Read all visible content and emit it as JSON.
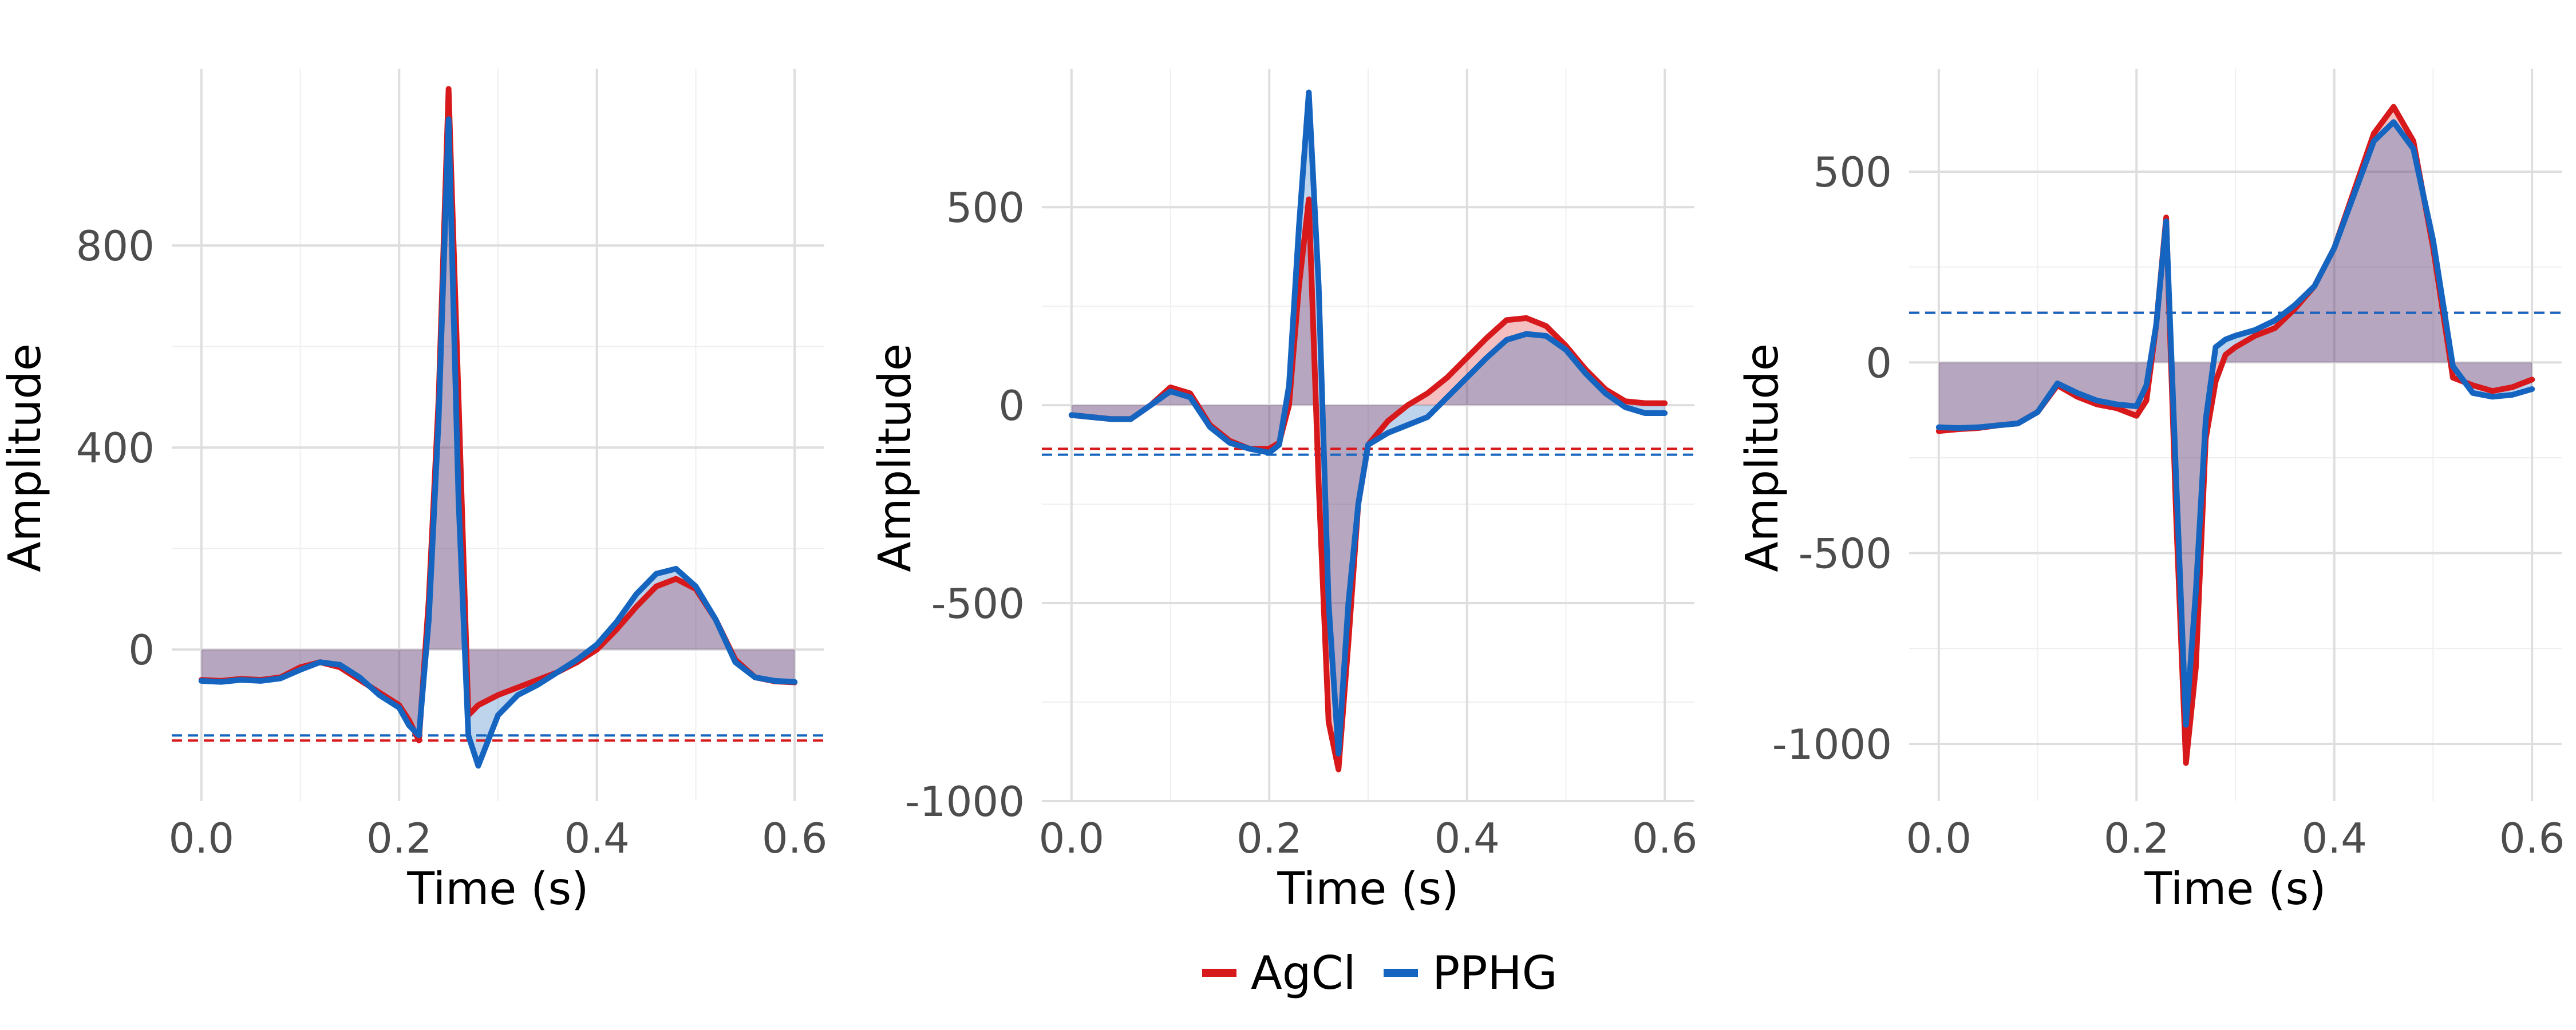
{
  "chart_data": [
    {
      "type": "line",
      "panel": 1,
      "xlabel": "Time (s)",
      "ylabel": "Amplitude",
      "xlim": [
        -0.03,
        0.63
      ],
      "ylim": [
        -300,
        1150
      ],
      "x_ticks": [
        0.0,
        0.2,
        0.4,
        0.6
      ],
      "x_tick_labels": [
        "0.0",
        "0.2",
        "0.4",
        "0.6"
      ],
      "y_ticks": [
        0,
        400,
        800
      ],
      "y_tick_labels": [
        "0",
        "400",
        "800"
      ],
      "grid": true,
      "x": [
        0.0,
        0.02,
        0.04,
        0.06,
        0.08,
        0.1,
        0.12,
        0.14,
        0.16,
        0.18,
        0.2,
        0.21,
        0.22,
        0.23,
        0.24,
        0.25,
        0.26,
        0.27,
        0.28,
        0.3,
        0.32,
        0.34,
        0.36,
        0.38,
        0.4,
        0.42,
        0.44,
        0.46,
        0.48,
        0.5,
        0.52,
        0.54,
        0.56,
        0.58,
        0.6
      ],
      "series": [
        {
          "name": "AgCl",
          "color": "#d7191c",
          "mean": -180,
          "values": [
            -60,
            -62,
            -58,
            -60,
            -55,
            -35,
            -25,
            -35,
            -60,
            -85,
            -110,
            -140,
            -180,
            100,
            500,
            1110,
            500,
            -130,
            -110,
            -90,
            -75,
            -60,
            -45,
            -25,
            0,
            40,
            85,
            125,
            140,
            120,
            60,
            -20,
            -55,
            -63,
            -65
          ]
        },
        {
          "name": "PPHG",
          "color": "#1565c0",
          "mean": -170,
          "values": [
            -62,
            -64,
            -60,
            -62,
            -57,
            -40,
            -25,
            -30,
            -55,
            -90,
            -115,
            -150,
            -170,
            60,
            460,
            1050,
            300,
            -170,
            -230,
            -130,
            -90,
            -70,
            -45,
            -20,
            10,
            55,
            110,
            150,
            160,
            125,
            60,
            -25,
            -55,
            -62,
            -64
          ]
        }
      ]
    },
    {
      "type": "line",
      "panel": 2,
      "xlabel": "Time (s)",
      "ylabel": "Amplitude",
      "xlim": [
        -0.03,
        0.63
      ],
      "ylim": [
        -1000,
        850
      ],
      "x_ticks": [
        0.0,
        0.2,
        0.4,
        0.6
      ],
      "x_tick_labels": [
        "0.0",
        "0.2",
        "0.4",
        "0.6"
      ],
      "y_ticks": [
        -1000,
        -500,
        0,
        500
      ],
      "y_tick_labels": [
        "-1000",
        "-500",
        "0",
        "500"
      ],
      "grid": true,
      "x": [
        0.0,
        0.02,
        0.04,
        0.06,
        0.08,
        0.1,
        0.12,
        0.14,
        0.16,
        0.18,
        0.2,
        0.21,
        0.22,
        0.23,
        0.24,
        0.25,
        0.26,
        0.27,
        0.28,
        0.29,
        0.3,
        0.32,
        0.34,
        0.36,
        0.38,
        0.4,
        0.42,
        0.44,
        0.46,
        0.48,
        0.5,
        0.52,
        0.54,
        0.56,
        0.58,
        0.6
      ],
      "series": [
        {
          "name": "AgCl",
          "color": "#d7191c",
          "mean": -110,
          "values": [
            -25,
            -30,
            -35,
            -35,
            0,
            45,
            30,
            -50,
            -90,
            -110,
            -110,
            -95,
            0,
            300,
            520,
            -200,
            -800,
            -920,
            -600,
            -250,
            -100,
            -40,
            0,
            30,
            70,
            120,
            170,
            215,
            220,
            200,
            150,
            90,
            40,
            10,
            5,
            5
          ]
        },
        {
          "name": "PPHG",
          "color": "#1565c0",
          "mean": -125,
          "values": [
            -25,
            -30,
            -35,
            -35,
            0,
            35,
            20,
            -55,
            -95,
            -110,
            -120,
            -100,
            50,
            450,
            790,
            300,
            -500,
            -880,
            -500,
            -250,
            -100,
            -70,
            -50,
            -30,
            20,
            70,
            120,
            165,
            180,
            175,
            140,
            80,
            30,
            -5,
            -20,
            -20
          ]
        }
      ]
    },
    {
      "type": "line",
      "panel": 3,
      "xlabel": "Time (s)",
      "ylabel": "Amplitude",
      "xlim": [
        -0.03,
        0.63
      ],
      "ylim": [
        -1150,
        770
      ],
      "x_ticks": [
        0.0,
        0.2,
        0.4,
        0.6
      ],
      "x_tick_labels": [
        "0.0",
        "0.2",
        "0.4",
        "0.6"
      ],
      "y_ticks": [
        -1000,
        -500,
        0,
        500
      ],
      "y_tick_labels": [
        "-1000",
        "-500",
        "0",
        "500"
      ],
      "grid": true,
      "x": [
        0.0,
        0.02,
        0.04,
        0.06,
        0.08,
        0.1,
        0.12,
        0.14,
        0.16,
        0.18,
        0.2,
        0.21,
        0.22,
        0.23,
        0.24,
        0.25,
        0.26,
        0.27,
        0.28,
        0.29,
        0.3,
        0.32,
        0.34,
        0.36,
        0.38,
        0.4,
        0.42,
        0.44,
        0.46,
        0.48,
        0.5,
        0.52,
        0.54,
        0.56,
        0.58,
        0.6
      ],
      "series": [
        {
          "name": "AgCl",
          "color": "#d7191c",
          "mean": 130,
          "values": [
            -180,
            -175,
            -172,
            -165,
            -160,
            -130,
            -60,
            -90,
            -110,
            -120,
            -140,
            -100,
            100,
            380,
            -400,
            -1050,
            -800,
            -200,
            -50,
            20,
            40,
            70,
            90,
            140,
            200,
            300,
            450,
            600,
            670,
            580,
            300,
            -40,
            -60,
            -75,
            -65,
            -45
          ]
        },
        {
          "name": "PPHG",
          "color": "#1565c0",
          "mean": 130,
          "values": [
            -170,
            -172,
            -170,
            -165,
            -160,
            -130,
            -55,
            -80,
            -100,
            -110,
            -115,
            -60,
            100,
            370,
            -300,
            -950,
            -600,
            -150,
            40,
            60,
            70,
            85,
            110,
            150,
            200,
            300,
            440,
            580,
            630,
            560,
            320,
            -10,
            -80,
            -90,
            -85,
            -70
          ]
        }
      ]
    }
  ],
  "legend": {
    "items": [
      {
        "label": "AgCl",
        "color": "#d7191c"
      },
      {
        "label": "PPHG",
        "color": "#1565c0"
      }
    ],
    "placement": "bottom"
  }
}
